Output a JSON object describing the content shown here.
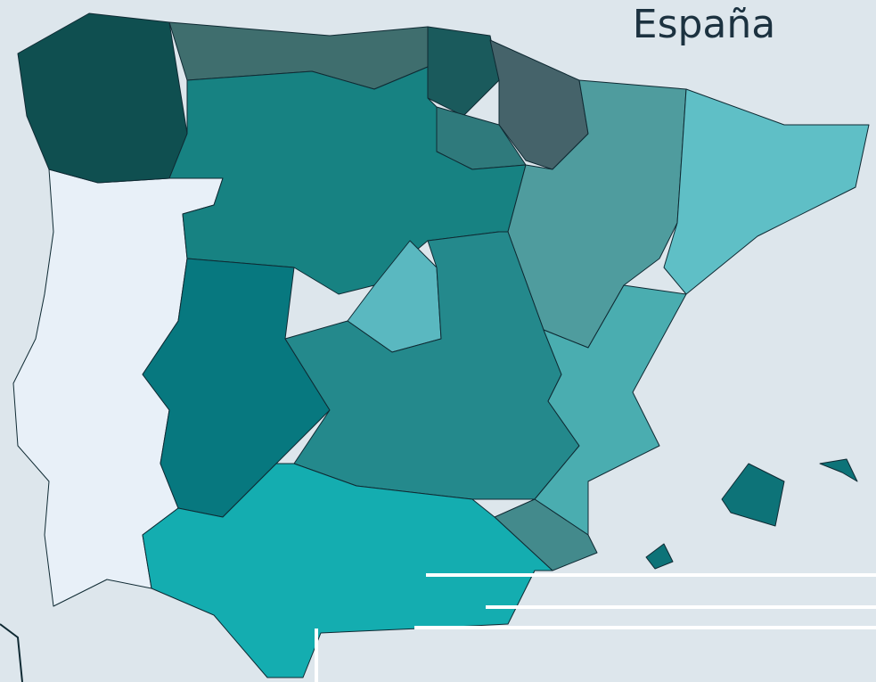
{
  "title": "España"
}
